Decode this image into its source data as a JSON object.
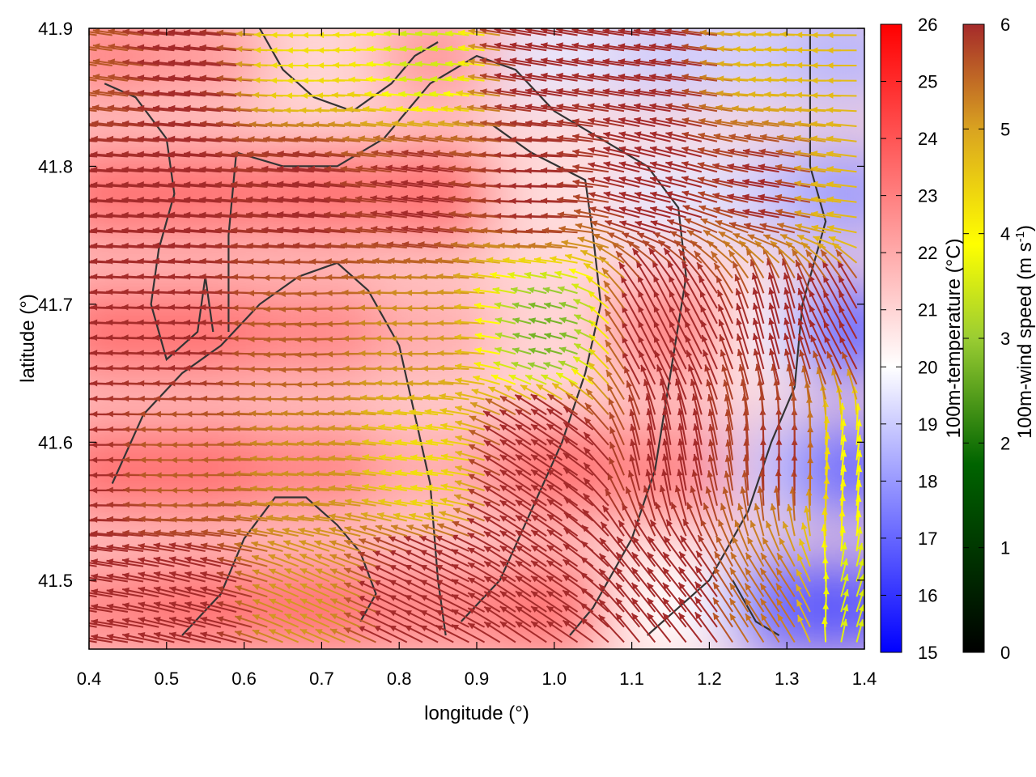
{
  "chart_data": {
    "type": "heatmap",
    "title": "",
    "xlabel": "longitude (°)",
    "ylabel": "latitude (°)",
    "xlim": [
      0.4,
      1.4
    ],
    "ylim": [
      41.45,
      41.9
    ],
    "x_ticks": [
      "0.4",
      "0.5",
      "0.6",
      "0.7",
      "0.8",
      "0.9",
      "1.0",
      "1.1",
      "1.2",
      "1.3",
      "1.4"
    ],
    "y_ticks": [
      "41.5",
      "41.6",
      "41.7",
      "41.8",
      "41.9"
    ],
    "temperature_colorbar": {
      "label": "100m-temperature (°C)",
      "range": [
        15,
        26
      ],
      "ticks": [
        "15",
        "16",
        "17",
        "18",
        "19",
        "20",
        "21",
        "22",
        "23",
        "24",
        "25",
        "26"
      ],
      "colors": [
        "#0000ff",
        "#ffffff",
        "#ff0000"
      ]
    },
    "wind_colorbar": {
      "label": "100m-wind speed (m s",
      "label_sup": "-1",
      "label_end": ")",
      "range": [
        0,
        6
      ],
      "ticks": [
        "0",
        "1",
        "2",
        "3",
        "4",
        "5",
        "6"
      ],
      "colors": [
        "#000000",
        "#006400",
        "#9acd32",
        "#ffff00",
        "#daa520",
        "#a52a2a"
      ]
    },
    "temperature_field": [
      {
        "lon": 0.42,
        "lat": 41.88,
        "t": 23.0
      },
      {
        "lon": 0.55,
        "lat": 41.88,
        "t": 22.5
      },
      {
        "lon": 0.7,
        "lat": 41.88,
        "t": 21.0
      },
      {
        "lon": 0.85,
        "lat": 41.88,
        "t": 22.5
      },
      {
        "lon": 1.0,
        "lat": 41.88,
        "t": 19.5
      },
      {
        "lon": 1.15,
        "lat": 41.88,
        "t": 19.0
      },
      {
        "lon": 1.3,
        "lat": 41.88,
        "t": 19.0
      },
      {
        "lon": 1.38,
        "lat": 41.88,
        "t": 18.5
      },
      {
        "lon": 0.42,
        "lat": 41.78,
        "t": 23.5
      },
      {
        "lon": 0.55,
        "lat": 41.78,
        "t": 23.5
      },
      {
        "lon": 0.7,
        "lat": 41.78,
        "t": 23.5
      },
      {
        "lon": 0.85,
        "lat": 41.78,
        "t": 23.5
      },
      {
        "lon": 1.0,
        "lat": 41.78,
        "t": 20.8
      },
      {
        "lon": 1.15,
        "lat": 41.78,
        "t": 19.5
      },
      {
        "lon": 1.3,
        "lat": 41.78,
        "t": 19.0
      },
      {
        "lon": 1.38,
        "lat": 41.78,
        "t": 18.0
      },
      {
        "lon": 0.42,
        "lat": 41.68,
        "t": 23.5
      },
      {
        "lon": 0.55,
        "lat": 41.68,
        "t": 23.5
      },
      {
        "lon": 0.7,
        "lat": 41.68,
        "t": 23.0
      },
      {
        "lon": 0.85,
        "lat": 41.68,
        "t": 22.0
      },
      {
        "lon": 1.0,
        "lat": 41.68,
        "t": 21.0
      },
      {
        "lon": 1.15,
        "lat": 41.68,
        "t": 23.0
      },
      {
        "lon": 1.3,
        "lat": 41.68,
        "t": 20.0
      },
      {
        "lon": 1.38,
        "lat": 41.68,
        "t": 17.0
      },
      {
        "lon": 0.42,
        "lat": 41.58,
        "t": 23.5
      },
      {
        "lon": 0.55,
        "lat": 41.58,
        "t": 23.5
      },
      {
        "lon": 0.7,
        "lat": 41.58,
        "t": 23.0
      },
      {
        "lon": 0.85,
        "lat": 41.58,
        "t": 22.0
      },
      {
        "lon": 1.0,
        "lat": 41.58,
        "t": 23.5
      },
      {
        "lon": 1.15,
        "lat": 41.58,
        "t": 23.0
      },
      {
        "lon": 1.3,
        "lat": 41.58,
        "t": 19.0
      },
      {
        "lon": 1.38,
        "lat": 41.58,
        "t": 17.0
      },
      {
        "lon": 0.42,
        "lat": 41.48,
        "t": 23.0
      },
      {
        "lon": 0.55,
        "lat": 41.48,
        "t": 23.5
      },
      {
        "lon": 0.7,
        "lat": 41.48,
        "t": 23.5
      },
      {
        "lon": 0.85,
        "lat": 41.48,
        "t": 23.0
      },
      {
        "lon": 1.0,
        "lat": 41.48,
        "t": 23.5
      },
      {
        "lon": 1.15,
        "lat": 41.48,
        "t": 20.0
      },
      {
        "lon": 1.3,
        "lat": 41.48,
        "t": 17.0
      },
      {
        "lon": 1.38,
        "lat": 41.48,
        "t": 16.5
      }
    ],
    "wind_field": [
      {
        "lon": 0.42,
        "lat": 41.88,
        "u": -5.5,
        "v": 0.8
      },
      {
        "lon": 0.55,
        "lat": 41.88,
        "u": -6.0,
        "v": 0.6
      },
      {
        "lon": 0.7,
        "lat": 41.88,
        "u": -4.0,
        "v": 0.0
      },
      {
        "lon": 0.85,
        "lat": 41.88,
        "u": -3.0,
        "v": 0.3
      },
      {
        "lon": 1.0,
        "lat": 41.88,
        "u": -6.0,
        "v": 1.0
      },
      {
        "lon": 1.15,
        "lat": 41.88,
        "u": -6.0,
        "v": 0.8
      },
      {
        "lon": 1.3,
        "lat": 41.88,
        "u": -4.5,
        "v": 0.2
      },
      {
        "lon": 1.38,
        "lat": 41.88,
        "u": -4.5,
        "v": 0.0
      },
      {
        "lon": 0.42,
        "lat": 41.78,
        "u": -6.0,
        "v": 0.4
      },
      {
        "lon": 0.55,
        "lat": 41.78,
        "u": -6.0,
        "v": 0.5
      },
      {
        "lon": 0.7,
        "lat": 41.78,
        "u": -6.0,
        "v": 0.6
      },
      {
        "lon": 0.85,
        "lat": 41.78,
        "u": -6.0,
        "v": 0.8
      },
      {
        "lon": 1.0,
        "lat": 41.78,
        "u": -6.0,
        "v": 0.2
      },
      {
        "lon": 1.15,
        "lat": 41.78,
        "u": -6.0,
        "v": 1.5
      },
      {
        "lon": 1.3,
        "lat": 41.78,
        "u": -6.0,
        "v": 1.0
      },
      {
        "lon": 1.38,
        "lat": 41.78,
        "u": -4.5,
        "v": 0.5
      },
      {
        "lon": 0.42,
        "lat": 41.68,
        "u": -6.0,
        "v": 0.2
      },
      {
        "lon": 0.55,
        "lat": 41.68,
        "u": -6.0,
        "v": 0.2
      },
      {
        "lon": 0.7,
        "lat": 41.68,
        "u": -5.5,
        "v": -0.2
      },
      {
        "lon": 0.85,
        "lat": 41.68,
        "u": -5.0,
        "v": 0.0
      },
      {
        "lon": 1.0,
        "lat": 41.68,
        "u": -2.0,
        "v": 0.5
      },
      {
        "lon": 1.15,
        "lat": 41.68,
        "u": -3.0,
        "v": 6.0
      },
      {
        "lon": 1.3,
        "lat": 41.68,
        "u": -1.5,
        "v": 6.0
      },
      {
        "lon": 1.38,
        "lat": 41.68,
        "u": -3.0,
        "v": 5.5
      },
      {
        "lon": 0.42,
        "lat": 41.58,
        "u": -6.0,
        "v": 0.0
      },
      {
        "lon": 0.55,
        "lat": 41.58,
        "u": -5.5,
        "v": 0.0
      },
      {
        "lon": 0.7,
        "lat": 41.58,
        "u": -5.0,
        "v": 0.3
      },
      {
        "lon": 0.85,
        "lat": 41.58,
        "u": -4.0,
        "v": 0.5
      },
      {
        "lon": 1.0,
        "lat": 41.58,
        "u": -6.0,
        "v": 4.0
      },
      {
        "lon": 1.15,
        "lat": 41.58,
        "u": -1.0,
        "v": 6.0
      },
      {
        "lon": 1.3,
        "lat": 41.58,
        "u": 0.0,
        "v": 6.0
      },
      {
        "lon": 1.38,
        "lat": 41.58,
        "u": 0.5,
        "v": 3.5
      },
      {
        "lon": 0.42,
        "lat": 41.48,
        "u": -6.0,
        "v": 1.0
      },
      {
        "lon": 0.55,
        "lat": 41.48,
        "u": -6.0,
        "v": 1.5
      },
      {
        "lon": 0.7,
        "lat": 41.48,
        "u": -4.5,
        "v": 2.0
      },
      {
        "lon": 0.85,
        "lat": 41.48,
        "u": -6.0,
        "v": 3.0
      },
      {
        "lon": 1.0,
        "lat": 41.48,
        "u": -6.0,
        "v": 4.0
      },
      {
        "lon": 1.15,
        "lat": 41.48,
        "u": -4.0,
        "v": 5.0
      },
      {
        "lon": 1.3,
        "lat": 41.48,
        "u": -3.0,
        "v": 4.5
      },
      {
        "lon": 1.38,
        "lat": 41.48,
        "u": 1.0,
        "v": 3.0
      }
    ],
    "contours": [
      [
        [
          0.62,
          41.9
        ],
        [
          0.65,
          41.87
        ],
        [
          0.69,
          41.85
        ],
        [
          0.74,
          41.84
        ],
        [
          0.79,
          41.86
        ],
        [
          0.82,
          41.88
        ],
        [
          0.85,
          41.89
        ]
      ],
      [
        [
          0.42,
          41.86
        ],
        [
          0.46,
          41.85
        ],
        [
          0.5,
          41.82
        ],
        [
          0.51,
          41.78
        ],
        [
          0.49,
          41.74
        ],
        [
          0.48,
          41.7
        ],
        [
          0.5,
          41.66
        ],
        [
          0.54,
          41.68
        ],
        [
          0.55,
          41.72
        ],
        [
          0.56,
          41.68
        ]
      ],
      [
        [
          0.58,
          41.68
        ],
        [
          0.58,
          41.75
        ],
        [
          0.59,
          41.81
        ],
        [
          0.65,
          41.8
        ],
        [
          0.72,
          41.8
        ],
        [
          0.78,
          41.82
        ],
        [
          0.84,
          41.86
        ],
        [
          0.9,
          41.88
        ],
        [
          0.95,
          41.87
        ],
        [
          1.0,
          41.84
        ],
        [
          1.06,
          41.82
        ],
        [
          1.12,
          41.8
        ],
        [
          1.16,
          41.77
        ],
        [
          1.17,
          41.72
        ],
        [
          1.15,
          41.65
        ],
        [
          1.13,
          41.58
        ],
        [
          1.1,
          41.53
        ],
        [
          1.05,
          41.48
        ],
        [
          1.02,
          41.46
        ]
      ],
      [
        [
          1.33,
          41.9
        ],
        [
          1.33,
          41.8
        ],
        [
          1.35,
          41.76
        ],
        [
          1.32,
          41.7
        ],
        [
          1.31,
          41.64
        ],
        [
          1.28,
          41.6
        ],
        [
          1.25,
          41.55
        ],
        [
          1.2,
          41.5
        ],
        [
          1.12,
          41.46
        ]
      ],
      [
        [
          0.43,
          41.57
        ],
        [
          0.47,
          41.62
        ],
        [
          0.52,
          41.65
        ],
        [
          0.57,
          41.67
        ],
        [
          0.62,
          41.7
        ],
        [
          0.67,
          41.72
        ],
        [
          0.72,
          41.73
        ],
        [
          0.76,
          41.71
        ],
        [
          0.8,
          41.67
        ],
        [
          0.82,
          41.62
        ],
        [
          0.84,
          41.57
        ],
        [
          0.85,
          41.5
        ],
        [
          0.86,
          41.46
        ]
      ],
      [
        [
          0.52,
          41.46
        ],
        [
          0.57,
          41.49
        ],
        [
          0.6,
          41.53
        ],
        [
          0.64,
          41.56
        ],
        [
          0.68,
          41.56
        ],
        [
          0.72,
          41.54
        ],
        [
          0.75,
          41.52
        ],
        [
          0.77,
          41.49
        ],
        [
          0.75,
          41.47
        ]
      ],
      [
        [
          0.88,
          41.47
        ],
        [
          0.93,
          41.5
        ],
        [
          0.97,
          41.55
        ],
        [
          1.01,
          41.6
        ],
        [
          1.04,
          41.65
        ],
        [
          1.06,
          41.7
        ],
        [
          1.05,
          41.75
        ],
        [
          1.04,
          41.79
        ],
        [
          0.97,
          41.81
        ],
        [
          0.92,
          41.83
        ]
      ],
      [
        [
          1.23,
          41.5
        ],
        [
          1.26,
          41.47
        ],
        [
          1.29,
          41.46
        ]
      ]
    ]
  }
}
